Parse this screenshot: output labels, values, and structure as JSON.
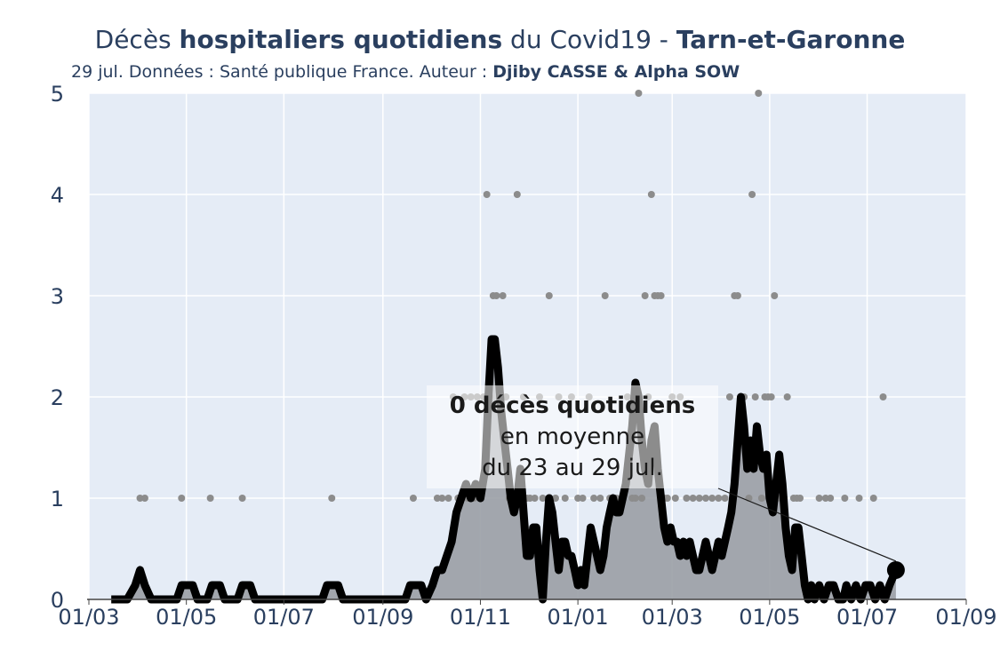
{
  "title": {
    "part1": "Décès ",
    "bold1": "hospitaliers quotidiens",
    "part2": " du Covid19 - ",
    "bold2": "Tarn-et-Garonne"
  },
  "subtitle": {
    "text": "29 jul. Données : Santé publique France. Auteur : ",
    "bold": "Djiby CASSE & Alpha SOW"
  },
  "annotation": {
    "line1": "0 décès quotidiens",
    "line2": "en moyenne",
    "line3": "du 23 au 29 jul."
  },
  "colors": {
    "plot_bg": "#e5ecf6",
    "grid": "#ffffff",
    "area": "#9a9fa5",
    "line": "#000000",
    "points": "#8c8c8c"
  },
  "chart_data": {
    "type": "line",
    "x_axis": {
      "range": [
        "2020-03-01",
        "2021-09-01"
      ],
      "tick_values": [
        "2020-03-01",
        "2020-05-01",
        "2020-07-01",
        "2020-09-01",
        "2020-11-01",
        "2021-01-01",
        "2021-03-01",
        "2021-05-01",
        "2021-07-01",
        "2021-09-01"
      ],
      "tick_labels": [
        "01/03",
        "01/05",
        "01/07",
        "01/09",
        "01/11",
        "01/01",
        "01/03",
        "01/05",
        "01/07",
        "01/09"
      ]
    },
    "y_axis": {
      "range": [
        0,
        5
      ],
      "tick_values": [
        0,
        1,
        2,
        3,
        4,
        5
      ],
      "tick_labels": [
        "0",
        "1",
        "2",
        "3",
        "4",
        "5"
      ]
    },
    "grid": true,
    "legend": false,
    "series": [
      {
        "kind": "daily_points",
        "points": [
          [
            "2020-04-02",
            1
          ],
          [
            "2020-04-05",
            1
          ],
          [
            "2020-04-28",
            1
          ],
          [
            "2020-05-16",
            1
          ],
          [
            "2020-06-05",
            1
          ],
          [
            "2020-07-31",
            1
          ],
          [
            "2020-09-20",
            1
          ],
          [
            "2020-10-05",
            1
          ],
          [
            "2020-10-08",
            1
          ],
          [
            "2020-10-12",
            1
          ],
          [
            "2020-10-15",
            2
          ],
          [
            "2020-10-18",
            1
          ],
          [
            "2020-10-20",
            1
          ],
          [
            "2020-10-22",
            2
          ],
          [
            "2020-10-24",
            1
          ],
          [
            "2020-10-26",
            2
          ],
          [
            "2020-10-28",
            1
          ],
          [
            "2020-10-30",
            2
          ],
          [
            "2020-11-01",
            1
          ],
          [
            "2020-11-03",
            2
          ],
          [
            "2020-11-05",
            4
          ],
          [
            "2020-11-07",
            2
          ],
          [
            "2020-11-09",
            3
          ],
          [
            "2020-11-11",
            3
          ],
          [
            "2020-11-13",
            2
          ],
          [
            "2020-11-15",
            3
          ],
          [
            "2020-11-17",
            2
          ],
          [
            "2020-11-19",
            1
          ],
          [
            "2020-11-22",
            1
          ],
          [
            "2020-11-24",
            4
          ],
          [
            "2020-11-26",
            1
          ],
          [
            "2020-11-28",
            2
          ],
          [
            "2020-11-30",
            1
          ],
          [
            "2020-12-02",
            1
          ],
          [
            "2020-12-05",
            1
          ],
          [
            "2020-12-08",
            2
          ],
          [
            "2020-12-10",
            1
          ],
          [
            "2020-12-14",
            3
          ],
          [
            "2020-12-18",
            1
          ],
          [
            "2020-12-20",
            2
          ],
          [
            "2020-12-24",
            1
          ],
          [
            "2020-12-28",
            2
          ],
          [
            "2021-01-01",
            1
          ],
          [
            "2021-01-04",
            1
          ],
          [
            "2021-01-08",
            2
          ],
          [
            "2021-01-11",
            1
          ],
          [
            "2021-01-15",
            1
          ],
          [
            "2021-01-18",
            3
          ],
          [
            "2021-01-21",
            1
          ],
          [
            "2021-01-25",
            1
          ],
          [
            "2021-01-28",
            1
          ],
          [
            "2021-02-01",
            2
          ],
          [
            "2021-02-04",
            1
          ],
          [
            "2021-02-06",
            1
          ],
          [
            "2021-02-08",
            5
          ],
          [
            "2021-02-10",
            1
          ],
          [
            "2021-02-12",
            3
          ],
          [
            "2021-02-14",
            2
          ],
          [
            "2021-02-16",
            4
          ],
          [
            "2021-02-18",
            3
          ],
          [
            "2021-02-20",
            3
          ],
          [
            "2021-02-22",
            3
          ],
          [
            "2021-02-24",
            1
          ],
          [
            "2021-02-26",
            1
          ],
          [
            "2021-03-01",
            2
          ],
          [
            "2021-03-03",
            1
          ],
          [
            "2021-03-06",
            2
          ],
          [
            "2021-03-10",
            1
          ],
          [
            "2021-03-14",
            1
          ],
          [
            "2021-03-18",
            1
          ],
          [
            "2021-03-22",
            1
          ],
          [
            "2021-03-26",
            1
          ],
          [
            "2021-03-30",
            1
          ],
          [
            "2021-04-03",
            1
          ],
          [
            "2021-04-06",
            2
          ],
          [
            "2021-04-09",
            3
          ],
          [
            "2021-04-11",
            3
          ],
          [
            "2021-04-13",
            2
          ],
          [
            "2021-04-15",
            2
          ],
          [
            "2021-04-18",
            1
          ],
          [
            "2021-04-20",
            4
          ],
          [
            "2021-04-22",
            2
          ],
          [
            "2021-04-24",
            5
          ],
          [
            "2021-04-26",
            1
          ],
          [
            "2021-04-28",
            2
          ],
          [
            "2021-04-30",
            2
          ],
          [
            "2021-05-02",
            2
          ],
          [
            "2021-05-04",
            3
          ],
          [
            "2021-05-06",
            1
          ],
          [
            "2021-05-10",
            1
          ],
          [
            "2021-05-12",
            2
          ],
          [
            "2021-05-16",
            1
          ],
          [
            "2021-05-18",
            1
          ],
          [
            "2021-05-20",
            1
          ],
          [
            "2021-06-01",
            1
          ],
          [
            "2021-06-05",
            1
          ],
          [
            "2021-06-08",
            1
          ],
          [
            "2021-06-17",
            1
          ],
          [
            "2021-06-26",
            1
          ],
          [
            "2021-07-05",
            1
          ],
          [
            "2021-07-11",
            2
          ]
        ]
      },
      {
        "kind": "rolling_average",
        "points": [
          [
            "2020-03-15",
            0
          ],
          [
            "2020-03-25",
            0
          ],
          [
            "2020-03-30",
            0.14
          ],
          [
            "2020-04-02",
            0.29
          ],
          [
            "2020-04-05",
            0.14
          ],
          [
            "2020-04-09",
            0
          ],
          [
            "2020-04-25",
            0
          ],
          [
            "2020-04-28",
            0.14
          ],
          [
            "2020-05-05",
            0.14
          ],
          [
            "2020-05-08",
            0
          ],
          [
            "2020-05-14",
            0
          ],
          [
            "2020-05-17",
            0.14
          ],
          [
            "2020-05-22",
            0.14
          ],
          [
            "2020-05-25",
            0
          ],
          [
            "2020-06-02",
            0
          ],
          [
            "2020-06-05",
            0.14
          ],
          [
            "2020-06-10",
            0.14
          ],
          [
            "2020-06-13",
            0
          ],
          [
            "2020-07-25",
            0
          ],
          [
            "2020-07-28",
            0.14
          ],
          [
            "2020-08-04",
            0.14
          ],
          [
            "2020-08-07",
            0
          ],
          [
            "2020-09-15",
            0
          ],
          [
            "2020-09-18",
            0.14
          ],
          [
            "2020-09-25",
            0.14
          ],
          [
            "2020-09-28",
            0
          ],
          [
            "2020-10-02",
            0.14
          ],
          [
            "2020-10-05",
            0.29
          ],
          [
            "2020-10-08",
            0.29
          ],
          [
            "2020-10-11",
            0.43
          ],
          [
            "2020-10-14",
            0.57
          ],
          [
            "2020-10-17",
            0.86
          ],
          [
            "2020-10-20",
            1.0
          ],
          [
            "2020-10-23",
            1.14
          ],
          [
            "2020-10-26",
            1.0
          ],
          [
            "2020-10-29",
            1.14
          ],
          [
            "2020-11-01",
            1.0
          ],
          [
            "2020-11-04",
            1.29
          ],
          [
            "2020-11-06",
            2.0
          ],
          [
            "2020-11-08",
            2.57
          ],
          [
            "2020-11-10",
            2.57
          ],
          [
            "2020-11-12",
            2.29
          ],
          [
            "2020-11-14",
            1.86
          ],
          [
            "2020-11-16",
            1.57
          ],
          [
            "2020-11-18",
            1.29
          ],
          [
            "2020-11-20",
            1.0
          ],
          [
            "2020-11-22",
            0.86
          ],
          [
            "2020-11-24",
            1.0
          ],
          [
            "2020-11-26",
            1.29
          ],
          [
            "2020-11-28",
            0.86
          ],
          [
            "2020-11-30",
            0.43
          ],
          [
            "2020-12-02",
            0.43
          ],
          [
            "2020-12-04",
            0.71
          ],
          [
            "2020-12-06",
            0.71
          ],
          [
            "2020-12-08",
            0.29
          ],
          [
            "2020-12-10",
            0.0
          ],
          [
            "2020-12-12",
            0.57
          ],
          [
            "2020-12-14",
            1.0
          ],
          [
            "2020-12-16",
            0.86
          ],
          [
            "2020-12-18",
            0.57
          ],
          [
            "2020-12-20",
            0.29
          ],
          [
            "2020-12-22",
            0.57
          ],
          [
            "2020-12-24",
            0.57
          ],
          [
            "2020-12-26",
            0.43
          ],
          [
            "2020-12-28",
            0.43
          ],
          [
            "2020-12-30",
            0.29
          ],
          [
            "2021-01-01",
            0.14
          ],
          [
            "2021-01-03",
            0.29
          ],
          [
            "2021-01-05",
            0.14
          ],
          [
            "2021-01-07",
            0.43
          ],
          [
            "2021-01-09",
            0.71
          ],
          [
            "2021-01-11",
            0.57
          ],
          [
            "2021-01-13",
            0.43
          ],
          [
            "2021-01-15",
            0.29
          ],
          [
            "2021-01-17",
            0.43
          ],
          [
            "2021-01-19",
            0.71
          ],
          [
            "2021-01-21",
            0.86
          ],
          [
            "2021-01-23",
            1.0
          ],
          [
            "2021-01-25",
            0.86
          ],
          [
            "2021-01-27",
            0.86
          ],
          [
            "2021-01-29",
            1.0
          ],
          [
            "2021-01-31",
            1.14
          ],
          [
            "2021-02-02",
            1.43
          ],
          [
            "2021-02-04",
            1.71
          ],
          [
            "2021-02-06",
            2.14
          ],
          [
            "2021-02-08",
            2.0
          ],
          [
            "2021-02-10",
            1.57
          ],
          [
            "2021-02-12",
            1.29
          ],
          [
            "2021-02-14",
            1.14
          ],
          [
            "2021-02-16",
            1.57
          ],
          [
            "2021-02-18",
            1.71
          ],
          [
            "2021-02-20",
            1.29
          ],
          [
            "2021-02-22",
            1.0
          ],
          [
            "2021-02-24",
            0.71
          ],
          [
            "2021-02-26",
            0.57
          ],
          [
            "2021-02-28",
            0.71
          ],
          [
            "2021-03-02",
            0.57
          ],
          [
            "2021-03-04",
            0.57
          ],
          [
            "2021-03-06",
            0.43
          ],
          [
            "2021-03-08",
            0.57
          ],
          [
            "2021-03-10",
            0.43
          ],
          [
            "2021-03-12",
            0.57
          ],
          [
            "2021-03-14",
            0.43
          ],
          [
            "2021-03-16",
            0.29
          ],
          [
            "2021-03-18",
            0.29
          ],
          [
            "2021-03-20",
            0.43
          ],
          [
            "2021-03-22",
            0.57
          ],
          [
            "2021-03-24",
            0.43
          ],
          [
            "2021-03-26",
            0.29
          ],
          [
            "2021-03-28",
            0.43
          ],
          [
            "2021-03-30",
            0.57
          ],
          [
            "2021-04-01",
            0.43
          ],
          [
            "2021-04-03",
            0.57
          ],
          [
            "2021-04-05",
            0.71
          ],
          [
            "2021-04-07",
            0.86
          ],
          [
            "2021-04-09",
            1.14
          ],
          [
            "2021-04-11",
            1.57
          ],
          [
            "2021-04-13",
            2.0
          ],
          [
            "2021-04-15",
            1.71
          ],
          [
            "2021-04-17",
            1.29
          ],
          [
            "2021-04-19",
            1.57
          ],
          [
            "2021-04-21",
            1.29
          ],
          [
            "2021-04-23",
            1.71
          ],
          [
            "2021-04-25",
            1.43
          ],
          [
            "2021-04-27",
            1.29
          ],
          [
            "2021-04-29",
            1.43
          ],
          [
            "2021-05-01",
            1.0
          ],
          [
            "2021-05-03",
            0.86
          ],
          [
            "2021-05-05",
            1.14
          ],
          [
            "2021-05-07",
            1.43
          ],
          [
            "2021-05-09",
            1.14
          ],
          [
            "2021-05-11",
            0.71
          ],
          [
            "2021-05-13",
            0.43
          ],
          [
            "2021-05-15",
            0.29
          ],
          [
            "2021-05-17",
            0.71
          ],
          [
            "2021-05-19",
            0.71
          ],
          [
            "2021-05-21",
            0.43
          ],
          [
            "2021-05-23",
            0.14
          ],
          [
            "2021-05-25",
            0.0
          ],
          [
            "2021-05-27",
            0.14
          ],
          [
            "2021-05-29",
            0.0
          ],
          [
            "2021-06-01",
            0.14
          ],
          [
            "2021-06-04",
            0.0
          ],
          [
            "2021-06-07",
            0.14
          ],
          [
            "2021-06-10",
            0.14
          ],
          [
            "2021-06-13",
            0.0
          ],
          [
            "2021-06-16",
            0.0
          ],
          [
            "2021-06-18",
            0.14
          ],
          [
            "2021-06-21",
            0.0
          ],
          [
            "2021-06-24",
            0.14
          ],
          [
            "2021-06-27",
            0.0
          ],
          [
            "2021-06-30",
            0.14
          ],
          [
            "2021-07-03",
            0.14
          ],
          [
            "2021-07-06",
            0.0
          ],
          [
            "2021-07-09",
            0.14
          ],
          [
            "2021-07-12",
            0.0
          ],
          [
            "2021-07-15",
            0.14
          ],
          [
            "2021-07-19",
            0.29
          ]
        ]
      }
    ],
    "marker": [
      "2021-07-19",
      0.29
    ]
  }
}
